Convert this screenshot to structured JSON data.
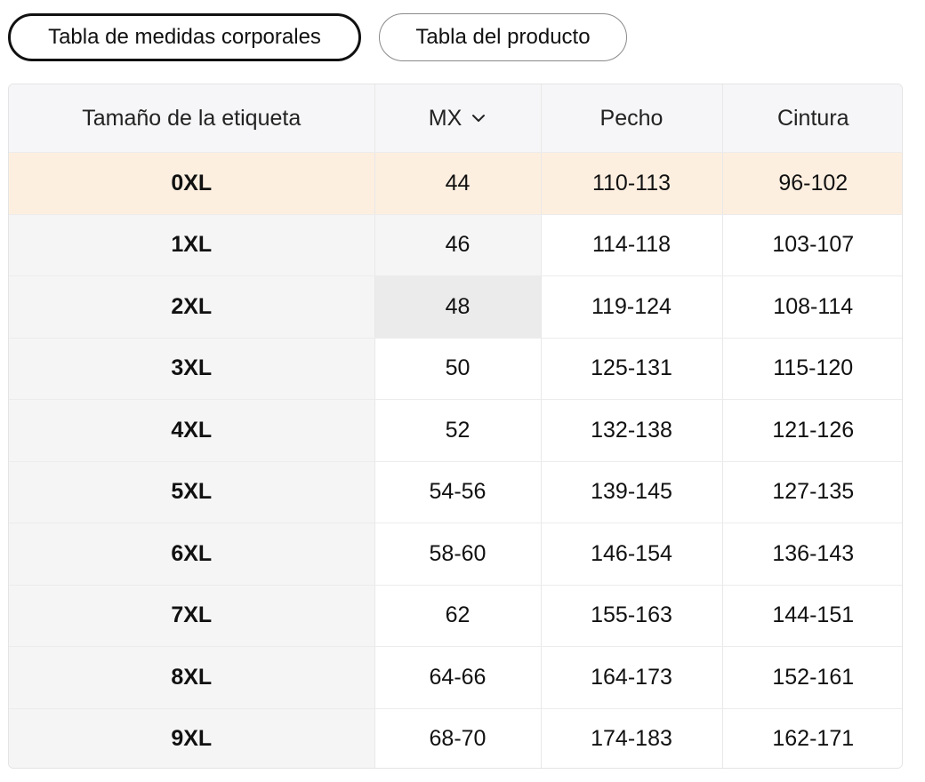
{
  "tabs": [
    {
      "label": "Tabla de medidas corporales",
      "active": true
    },
    {
      "label": "Tabla del producto",
      "active": false
    }
  ],
  "table": {
    "headers": {
      "size": "Tamaño de la etiqueta",
      "mx": "MX",
      "chest": "Pecho",
      "waist": "Cintura"
    },
    "rows": [
      [
        "0XL",
        "44",
        "110-113",
        "96-102"
      ],
      [
        "1XL",
        "46",
        "114-118",
        "103-107"
      ],
      [
        "2XL",
        "48",
        "119-124",
        "108-114"
      ],
      [
        "3XL",
        "50",
        "125-131",
        "115-120"
      ],
      [
        "4XL",
        "52",
        "132-138",
        "121-126"
      ],
      [
        "5XL",
        "54-56",
        "139-145",
        "127-135"
      ],
      [
        "6XL",
        "58-60",
        "146-154",
        "136-143"
      ],
      [
        "7XL",
        "62",
        "155-163",
        "144-151"
      ],
      [
        "8XL",
        "64-66",
        "164-173",
        "152-161"
      ],
      [
        "9XL",
        "68-70",
        "174-183",
        "162-171"
      ]
    ]
  },
  "icons": {
    "mx_dropdown": "chevron-down-icon"
  },
  "colors": {
    "highlight_row": "#fdefe0",
    "header_bg": "#f6f6f8",
    "size_col_bg": "#f5f5f5"
  }
}
